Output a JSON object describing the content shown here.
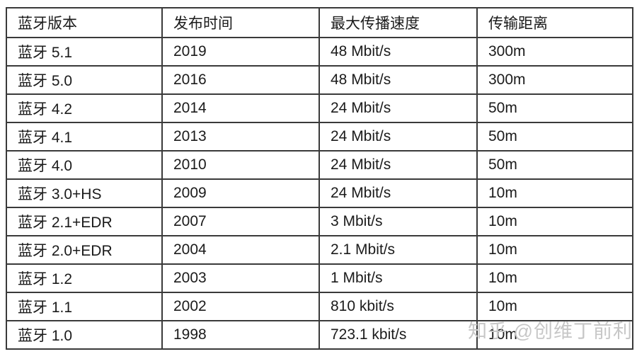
{
  "table": {
    "headers": [
      "蓝牙版本",
      "发布时间",
      "最大传播速度",
      "传输距离"
    ],
    "rows": [
      [
        "蓝牙 5.1",
        "2019",
        "48 Mbit/s",
        "300m"
      ],
      [
        "蓝牙 5.0",
        "2016",
        "48 Mbit/s",
        "300m"
      ],
      [
        "蓝牙 4.2",
        "2014",
        "24 Mbit/s",
        "50m"
      ],
      [
        "蓝牙 4.1",
        "2013",
        "24 Mbit/s",
        "50m"
      ],
      [
        "蓝牙 4.0",
        "2010",
        "24 Mbit/s",
        "50m"
      ],
      [
        "蓝牙 3.0+HS",
        "2009",
        "24 Mbit/s",
        "10m"
      ],
      [
        "蓝牙 2.1+EDR",
        "2007",
        "3 Mbit/s",
        "10m"
      ],
      [
        "蓝牙 2.0+EDR",
        "2004",
        "2.1 Mbit/s",
        "10m"
      ],
      [
        "蓝牙 1.2",
        "2003",
        "1 Mbit/s",
        "10m"
      ],
      [
        "蓝牙 1.1",
        "2002",
        "810 kbit/s",
        "10m"
      ],
      [
        "蓝牙 1.0",
        "1998",
        "723.1 kbit/s",
        "10m"
      ]
    ]
  },
  "watermark": {
    "text": "知乎 @创维丁前利"
  },
  "colors": {
    "border": "#3a3a3a",
    "text": "#1b1b1b",
    "watermark": "#c7c7c7",
    "background": "#ffffff"
  },
  "chart_data": {
    "type": "table",
    "title": "",
    "columns": [
      "蓝牙版本",
      "发布时间",
      "最大传播速度",
      "传输距离"
    ],
    "rows": [
      [
        "蓝牙 5.1",
        "2019",
        "48 Mbit/s",
        "300m"
      ],
      [
        "蓝牙 5.0",
        "2016",
        "48 Mbit/s",
        "300m"
      ],
      [
        "蓝牙 4.2",
        "2014",
        "24 Mbit/s",
        "50m"
      ],
      [
        "蓝牙 4.1",
        "2013",
        "24 Mbit/s",
        "50m"
      ],
      [
        "蓝牙 4.0",
        "2010",
        "24 Mbit/s",
        "50m"
      ],
      [
        "蓝牙 3.0+HS",
        "2009",
        "24 Mbit/s",
        "10m"
      ],
      [
        "蓝牙 2.1+EDR",
        "2007",
        "3 Mbit/s",
        "10m"
      ],
      [
        "蓝牙 2.0+EDR",
        "2004",
        "2.1 Mbit/s",
        "10m"
      ],
      [
        "蓝牙 1.2",
        "2003",
        "1 Mbit/s",
        "10m"
      ],
      [
        "蓝牙 1.1",
        "2002",
        "810 kbit/s",
        "10m"
      ],
      [
        "蓝牙 1.0",
        "1998",
        "723.1 kbit/s",
        "10m"
      ]
    ]
  }
}
